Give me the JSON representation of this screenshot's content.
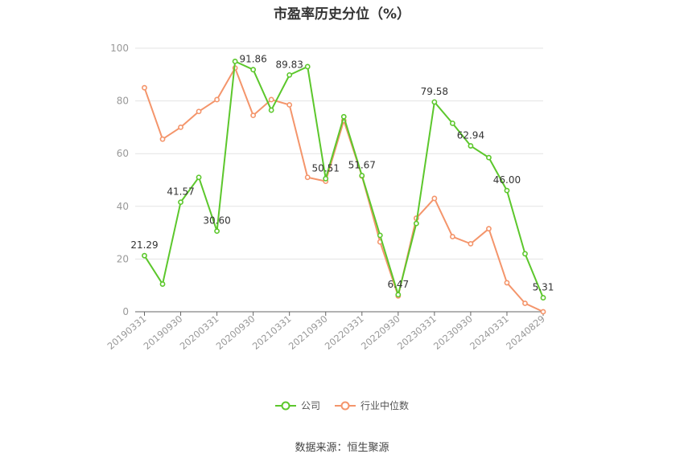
{
  "title": "市盈率历史分位（%）",
  "source": "数据来源：恒生聚源",
  "colors": {
    "company": "#5cc72c",
    "industry": "#f4956b",
    "grid": "#e3e3e3",
    "axis": "#999999"
  },
  "chart_data": {
    "type": "line",
    "title": "市盈率历史分位（%）",
    "ylim": [
      0,
      100
    ],
    "yticks": [
      0,
      20,
      40,
      60,
      80,
      100
    ],
    "grid": true,
    "legend_position": "bottom",
    "x": [
      "20190331",
      "20190630",
      "20190930",
      "20191231",
      "20200331",
      "20200630",
      "20200930",
      "20201231",
      "20210331",
      "20210630",
      "20210930",
      "20211231",
      "20220331",
      "20220630",
      "20220930",
      "20221231",
      "20230331",
      "20230630",
      "20230930",
      "20231231",
      "20240331",
      "20240630",
      "20240829"
    ],
    "xtick_labels": [
      "20190331",
      "20190930",
      "20200331",
      "20200930",
      "20210331",
      "20210930",
      "20220331",
      "20220930",
      "20230331",
      "20230930",
      "20240331",
      "20240829"
    ],
    "series": [
      {
        "name": "公司",
        "values": [
          21.29,
          10.5,
          41.57,
          51,
          30.6,
          95,
          91.86,
          76.5,
          89.83,
          93,
          50.51,
          74,
          51.67,
          29,
          6.47,
          33.5,
          79.58,
          71.5,
          62.94,
          58.5,
          46.0,
          22,
          5.31
        ],
        "labels": {
          "0": "21.29",
          "2": "41.57",
          "4": "30.60",
          "6": "91.86",
          "8": "89.83",
          "10": "50.51",
          "12": "51.67",
          "14": "6.47",
          "16": "79.58",
          "18": "62.94",
          "20": "46.00",
          "22": "5.31"
        }
      },
      {
        "name": "行业中位数",
        "values": [
          85,
          65.5,
          70,
          76,
          80.5,
          92.5,
          74.5,
          80.5,
          78.5,
          51,
          49.5,
          72.5,
          51.5,
          26.5,
          6,
          35.5,
          43,
          28.5,
          25.8,
          31.5,
          11,
          3.2,
          0
        ]
      }
    ]
  }
}
